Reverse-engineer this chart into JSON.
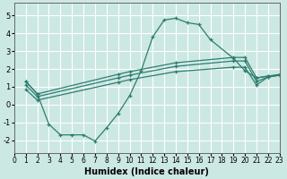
{
  "xlabel": "Humidex (Indice chaleur)",
  "bg_color": "#cce8e3",
  "grid_color": "#ffffff",
  "line_color": "#2e7d70",
  "xlim": [
    0,
    23
  ],
  "ylim": [
    -2.7,
    5.7
  ],
  "xticks": [
    0,
    1,
    2,
    3,
    4,
    5,
    6,
    7,
    8,
    9,
    10,
    11,
    12,
    13,
    14,
    15,
    16,
    17,
    18,
    19,
    20,
    21,
    22,
    23
  ],
  "yticks": [
    -2,
    -1,
    0,
    1,
    2,
    3,
    4,
    5
  ],
  "curve_x": [
    1,
    2,
    3,
    4,
    5,
    6,
    7,
    8,
    9,
    10,
    11,
    12,
    13,
    14,
    15,
    16,
    17,
    19,
    20,
    21,
    22,
    23
  ],
  "curve_y": [
    1.3,
    0.6,
    -1.1,
    -1.7,
    -1.7,
    -1.7,
    -2.05,
    -1.3,
    -0.5,
    0.5,
    1.9,
    3.8,
    4.75,
    4.85,
    4.6,
    4.5,
    3.65,
    2.6,
    1.9,
    1.5,
    1.6,
    1.7
  ],
  "line2_x": [
    1,
    2,
    9,
    10,
    14,
    19,
    20,
    21,
    22,
    23
  ],
  "line2_y": [
    1.3,
    0.6,
    1.7,
    1.85,
    2.35,
    2.65,
    2.65,
    1.5,
    1.6,
    1.65
  ],
  "line3_x": [
    1,
    2,
    9,
    10,
    14,
    19,
    20,
    21,
    22,
    23
  ],
  "line3_y": [
    1.1,
    0.45,
    1.5,
    1.65,
    2.15,
    2.45,
    2.45,
    1.3,
    1.55,
    1.65
  ],
  "line4_x": [
    1,
    2,
    9,
    10,
    14,
    19,
    20,
    21,
    22,
    23
  ],
  "line4_y": [
    0.85,
    0.25,
    1.25,
    1.4,
    1.85,
    2.1,
    2.1,
    1.1,
    1.55,
    1.65
  ]
}
